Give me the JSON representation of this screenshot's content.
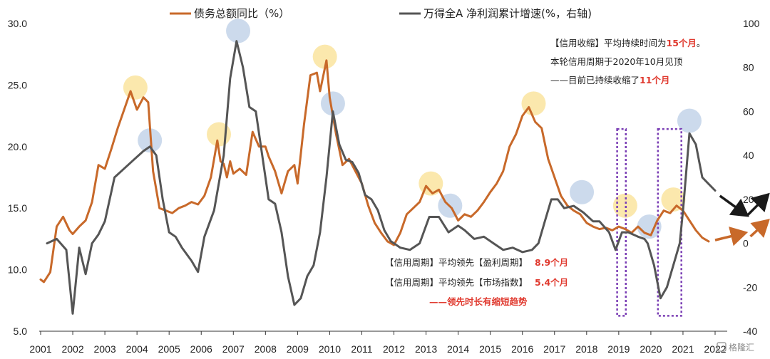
{
  "chart_data": {
    "type": "line",
    "x_ticks": [
      "2001",
      "2002",
      "2003",
      "2004",
      "2005",
      "2006",
      "2007",
      "2008",
      "2009",
      "2010",
      "2011",
      "2012",
      "2013",
      "2014",
      "2015",
      "2016",
      "2017",
      "2018",
      "2019",
      "2020",
      "2021",
      "2022"
    ],
    "y_left_ticks": [
      "30.0",
      "25.0",
      "20.0",
      "15.0",
      "10.0",
      "5.0"
    ],
    "y_right_ticks": [
      "100",
      "80",
      "60",
      "40",
      "20",
      "0",
      "-20",
      "-40"
    ],
    "ylim_left": [
      5,
      30
    ],
    "ylim_right": [
      -40,
      100
    ],
    "series": [
      {
        "name": "债务总额同比（%）",
        "axis": "left",
        "color": "#c8692a",
        "points": [
          [
            2001.0,
            9.2
          ],
          [
            2001.1,
            9.0
          ],
          [
            2001.3,
            9.8
          ],
          [
            2001.5,
            13.5
          ],
          [
            2001.7,
            14.3
          ],
          [
            2001.9,
            13.2
          ],
          [
            2002.0,
            12.9
          ],
          [
            2002.2,
            13.5
          ],
          [
            2002.4,
            14.0
          ],
          [
            2002.6,
            15.5
          ],
          [
            2002.8,
            18.5
          ],
          [
            2003.0,
            18.2
          ],
          [
            2003.2,
            19.8
          ],
          [
            2003.4,
            21.5
          ],
          [
            2003.6,
            23.0
          ],
          [
            2003.8,
            24.5
          ],
          [
            2004.0,
            23.0
          ],
          [
            2004.2,
            24.0
          ],
          [
            2004.35,
            23.6
          ],
          [
            2004.5,
            18.0
          ],
          [
            2004.7,
            15.0
          ],
          [
            2004.9,
            14.8
          ],
          [
            2005.1,
            14.6
          ],
          [
            2005.3,
            15.0
          ],
          [
            2005.5,
            15.2
          ],
          [
            2005.7,
            15.5
          ],
          [
            2005.9,
            15.3
          ],
          [
            2006.1,
            16.0
          ],
          [
            2006.3,
            17.5
          ],
          [
            2006.5,
            20.5
          ],
          [
            2006.6,
            18.8
          ],
          [
            2006.7,
            18.6
          ],
          [
            2006.8,
            17.5
          ],
          [
            2006.9,
            18.8
          ],
          [
            2007.0,
            17.8
          ],
          [
            2007.2,
            18.2
          ],
          [
            2007.4,
            17.7
          ],
          [
            2007.6,
            21.2
          ],
          [
            2007.8,
            20.0
          ],
          [
            2008.0,
            20.0
          ],
          [
            2008.1,
            19.2
          ],
          [
            2008.3,
            18.0
          ],
          [
            2008.5,
            16.2
          ],
          [
            2008.7,
            18.0
          ],
          [
            2008.9,
            18.5
          ],
          [
            2009.0,
            17.0
          ],
          [
            2009.2,
            21.8
          ],
          [
            2009.4,
            25.8
          ],
          [
            2009.6,
            26.0
          ],
          [
            2009.7,
            24.5
          ],
          [
            2009.9,
            27.0
          ],
          [
            2010.0,
            24.0
          ],
          [
            2010.2,
            21.0
          ],
          [
            2010.4,
            18.5
          ],
          [
            2010.6,
            19.0
          ],
          [
            2010.8,
            18.0
          ],
          [
            2011.0,
            17.0
          ],
          [
            2011.2,
            15.2
          ],
          [
            2011.4,
            13.8
          ],
          [
            2011.6,
            13.0
          ],
          [
            2011.8,
            12.3
          ],
          [
            2012.0,
            12.0
          ],
          [
            2012.2,
            13.0
          ],
          [
            2012.4,
            14.5
          ],
          [
            2012.6,
            15.0
          ],
          [
            2012.8,
            15.5
          ],
          [
            2013.0,
            16.8
          ],
          [
            2013.2,
            16.2
          ],
          [
            2013.4,
            16.5
          ],
          [
            2013.6,
            15.5
          ],
          [
            2013.8,
            15.0
          ],
          [
            2014.0,
            14.0
          ],
          [
            2014.2,
            14.5
          ],
          [
            2014.4,
            14.3
          ],
          [
            2014.6,
            14.8
          ],
          [
            2014.8,
            15.5
          ],
          [
            2015.0,
            16.3
          ],
          [
            2015.2,
            17.0
          ],
          [
            2015.4,
            18.0
          ],
          [
            2015.6,
            20.0
          ],
          [
            2015.8,
            21.0
          ],
          [
            2016.0,
            22.5
          ],
          [
            2016.2,
            23.2
          ],
          [
            2016.4,
            22.0
          ],
          [
            2016.6,
            21.5
          ],
          [
            2016.8,
            19.0
          ],
          [
            2017.0,
            17.5
          ],
          [
            2017.2,
            16.0
          ],
          [
            2017.4,
            15.2
          ],
          [
            2017.6,
            14.8
          ],
          [
            2017.8,
            14.5
          ],
          [
            2018.0,
            13.8
          ],
          [
            2018.2,
            13.5
          ],
          [
            2018.4,
            13.3
          ],
          [
            2018.6,
            13.4
          ],
          [
            2018.8,
            13.2
          ],
          [
            2019.0,
            13.5
          ],
          [
            2019.2,
            13.3
          ],
          [
            2019.4,
            13.0
          ],
          [
            2019.6,
            13.5
          ],
          [
            2019.8,
            13.0
          ],
          [
            2020.0,
            12.8
          ],
          [
            2020.2,
            14.0
          ],
          [
            2020.4,
            14.8
          ],
          [
            2020.6,
            14.6
          ],
          [
            2020.8,
            15.2
          ],
          [
            2021.0,
            14.8
          ],
          [
            2021.2,
            14.0
          ],
          [
            2021.4,
            13.2
          ],
          [
            2021.6,
            12.6
          ],
          [
            2021.8,
            12.3
          ]
        ]
      },
      {
        "name": "万得全A 净利润累计增速(%，右轴)",
        "axis": "right",
        "color": "#555555",
        "points": [
          [
            2001.2,
            0
          ],
          [
            2001.5,
            2
          ],
          [
            2001.8,
            -3
          ],
          [
            2002.0,
            -32
          ],
          [
            2002.2,
            -2
          ],
          [
            2002.4,
            -14
          ],
          [
            2002.6,
            0
          ],
          [
            2002.8,
            4
          ],
          [
            2003.0,
            10
          ],
          [
            2003.3,
            30
          ],
          [
            2003.6,
            34
          ],
          [
            2003.9,
            38
          ],
          [
            2004.2,
            42
          ],
          [
            2004.4,
            44
          ],
          [
            2004.6,
            40
          ],
          [
            2004.8,
            20
          ],
          [
            2005.0,
            5
          ],
          [
            2005.2,
            3
          ],
          [
            2005.4,
            -2
          ],
          [
            2005.7,
            -8
          ],
          [
            2005.9,
            -13
          ],
          [
            2006.1,
            3
          ],
          [
            2006.4,
            15
          ],
          [
            2006.7,
            40
          ],
          [
            2006.9,
            75
          ],
          [
            2007.1,
            92
          ],
          [
            2007.3,
            80
          ],
          [
            2007.5,
            62
          ],
          [
            2007.7,
            60
          ],
          [
            2007.9,
            40
          ],
          [
            2008.1,
            20
          ],
          [
            2008.3,
            18
          ],
          [
            2008.5,
            5
          ],
          [
            2008.7,
            -15
          ],
          [
            2008.9,
            -28
          ],
          [
            2009.1,
            -25
          ],
          [
            2009.3,
            -15
          ],
          [
            2009.5,
            -10
          ],
          [
            2009.7,
            5
          ],
          [
            2009.9,
            30
          ],
          [
            2010.1,
            60
          ],
          [
            2010.3,
            45
          ],
          [
            2010.5,
            38
          ],
          [
            2010.7,
            37
          ],
          [
            2010.9,
            32
          ],
          [
            2011.1,
            22
          ],
          [
            2011.3,
            20
          ],
          [
            2011.5,
            15
          ],
          [
            2011.7,
            6
          ],
          [
            2011.9,
            1
          ],
          [
            2012.2,
            -2
          ],
          [
            2012.5,
            -3
          ],
          [
            2012.8,
            0
          ],
          [
            2013.1,
            12
          ],
          [
            2013.4,
            12
          ],
          [
            2013.7,
            5
          ],
          [
            2014.0,
            8
          ],
          [
            2014.2,
            6
          ],
          [
            2014.5,
            2
          ],
          [
            2014.8,
            3
          ],
          [
            2015.1,
            0
          ],
          [
            2015.4,
            -3
          ],
          [
            2015.7,
            -2
          ],
          [
            2016.0,
            -4
          ],
          [
            2016.3,
            -3
          ],
          [
            2016.5,
            0
          ],
          [
            2016.7,
            10
          ],
          [
            2016.9,
            20
          ],
          [
            2017.1,
            20
          ],
          [
            2017.3,
            16
          ],
          [
            2017.6,
            17
          ],
          [
            2017.9,
            14
          ],
          [
            2018.2,
            10
          ],
          [
            2018.4,
            10
          ],
          [
            2018.7,
            5
          ],
          [
            2018.9,
            -3
          ],
          [
            2019.1,
            5
          ],
          [
            2019.3,
            5
          ],
          [
            2019.6,
            3
          ],
          [
            2019.8,
            2
          ],
          [
            2019.9,
            0
          ],
          [
            2020.1,
            -10
          ],
          [
            2020.3,
            -25
          ],
          [
            2020.5,
            -20
          ],
          [
            2020.7,
            -10
          ],
          [
            2020.9,
            0
          ],
          [
            2021.0,
            15
          ],
          [
            2021.2,
            50
          ],
          [
            2021.4,
            45
          ],
          [
            2021.6,
            30
          ],
          [
            2021.8,
            27
          ],
          [
            2022.0,
            24
          ]
        ]
      }
    ],
    "highlight_circles": [
      {
        "x": 2003.95,
        "y": 24.8,
        "axis": "left",
        "color": "#fbe6a4"
      },
      {
        "x": 2004.4,
        "y": 20.5,
        "axis": "left",
        "color": "#c6d6ea"
      },
      {
        "x": 2006.55,
        "y": 21.0,
        "axis": "left",
        "color": "#fbe6a4"
      },
      {
        "x": 2007.15,
        "y": 29.4,
        "axis": "left",
        "color": "#c6d6ea"
      },
      {
        "x": 2009.85,
        "y": 27.3,
        "axis": "left",
        "color": "#fbe6a4"
      },
      {
        "x": 2010.1,
        "y": 23.5,
        "axis": "left",
        "color": "#c6d6ea"
      },
      {
        "x": 2013.15,
        "y": 17.0,
        "axis": "left",
        "color": "#fbe6a4"
      },
      {
        "x": 2013.75,
        "y": 15.2,
        "axis": "left",
        "color": "#c6d6ea"
      },
      {
        "x": 2016.35,
        "y": 23.5,
        "axis": "left",
        "color": "#fbe6a4"
      },
      {
        "x": 2017.85,
        "y": 16.3,
        "axis": "left",
        "color": "#c6d6ea"
      },
      {
        "x": 2019.2,
        "y": 15.2,
        "axis": "left",
        "color": "#fbe6a4"
      },
      {
        "x": 2019.95,
        "y": 13.5,
        "axis": "left",
        "color": "#c6d6ea"
      },
      {
        "x": 2020.7,
        "y": 15.7,
        "axis": "left",
        "color": "#fbe6a4"
      },
      {
        "x": 2021.2,
        "y": 22.1,
        "axis": "left",
        "color": "#c6d6ea"
      }
    ],
    "boxes": [
      {
        "x_start": 2018.95,
        "x_end": 2019.22,
        "color": "#7b3fb5"
      },
      {
        "x_start": 2020.22,
        "x_end": 2020.95,
        "color": "#7b3fb5"
      }
    ],
    "arrows": [
      {
        "color": "#1a1a1a",
        "from": [
          2022.15,
          16.0
        ],
        "to": [
          2023.0,
          14.4
        ],
        "axis": "left"
      },
      {
        "color": "#1a1a1a",
        "from": [
          2023.0,
          14.4
        ],
        "to": [
          2023.65,
          16.1
        ],
        "axis": "left"
      },
      {
        "color": "#c8692a",
        "from": [
          2022.0,
          12.4
        ],
        "to": [
          2022.95,
          13.0
        ],
        "axis": "left"
      },
      {
        "color": "#c8692a",
        "from": [
          2023.1,
          12.7
        ],
        "to": [
          2023.65,
          14.0
        ],
        "axis": "left"
      }
    ]
  },
  "annotations": {
    "credit": {
      "line1_a": "【信用收缩】平均持续时间为",
      "line1_b": "15个月",
      "line1_c": "。",
      "line2": "本轮信用周期于2020年10月见顶",
      "line3_a": "——目前已持续收缩了",
      "line3_b": "11个月"
    },
    "lead": {
      "line1_a": "【信用周期】平均领先【盈利周期】",
      "line1_b": "8.9个月",
      "line2_a": "【信用周期】平均领先【市场指数】",
      "line2_b": "5.4个月",
      "line3": "——领先时长有缩短趋势"
    }
  },
  "watermark": "格隆汇"
}
